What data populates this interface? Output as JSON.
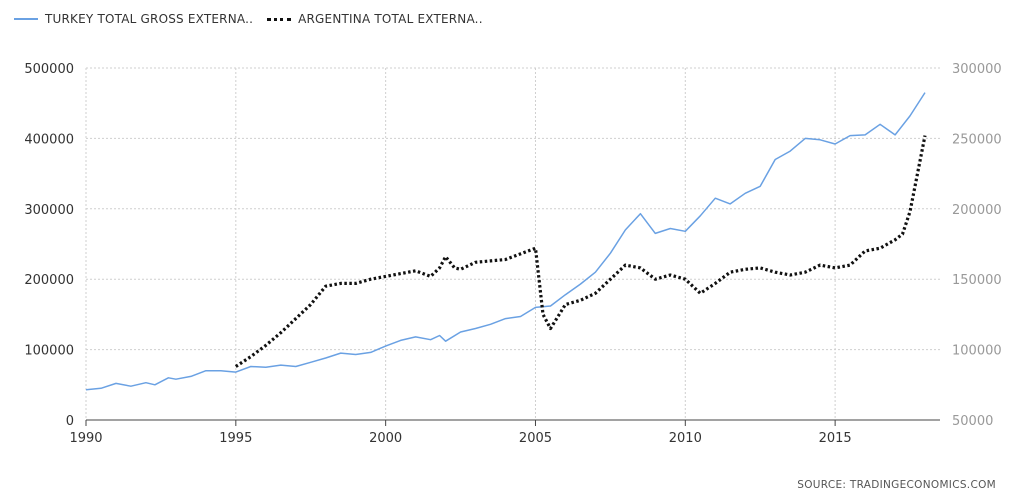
{
  "legend": {
    "series1": "TURKEY TOTAL GROSS EXTERNA..",
    "series2": "ARGENTINA TOTAL EXTERNA.."
  },
  "source": "SOURCE: TRADINGECONOMICS.COM",
  "colors": {
    "turkey": "#6aa1e3",
    "argentina": "#111111",
    "grid": "#cfcfcf"
  },
  "chart_data": {
    "type": "line",
    "title": "",
    "xlabel": "",
    "ylabel": "",
    "x_ticks": [
      "1990",
      "1995",
      "2000",
      "2005",
      "2010",
      "2015"
    ],
    "y_left_ticks": [
      "0",
      "100000",
      "200000",
      "300000",
      "400000",
      "500000"
    ],
    "y_right_ticks": [
      "50000",
      "100000",
      "150000",
      "200000",
      "250000",
      "300000"
    ],
    "xlim": [
      1990,
      2018.5
    ],
    "ylim_left": [
      0,
      500000
    ],
    "ylim_right": [
      50000,
      300000
    ],
    "grid": true,
    "legend_position": "top-left",
    "series": [
      {
        "name": "TURKEY TOTAL GROSS EXTERNA..",
        "axis": "left",
        "style": "solid",
        "x": [
          1990,
          1990.5,
          1991,
          1991.5,
          1992,
          1992.3,
          1992.75,
          1993,
          1993.5,
          1994,
          1994.5,
          1995,
          1995.5,
          1996,
          1996.5,
          1997,
          1997.5,
          1998,
          1998.5,
          1999,
          1999.5,
          2000,
          2000.5,
          2001,
          2001.5,
          2001.8,
          2002,
          2002.5,
          2003,
          2003.5,
          2004,
          2004.5,
          2005,
          2005.5,
          2006,
          2006.5,
          2007,
          2007.5,
          2008,
          2008.5,
          2009,
          2009.5,
          2010,
          2010.5,
          2011,
          2011.5,
          2012,
          2012.5,
          2013,
          2013.5,
          2014,
          2014.5,
          2015,
          2015.5,
          2016,
          2016.5,
          2017,
          2017.5,
          2018
        ],
        "values": [
          43000,
          45000,
          52000,
          48000,
          53000,
          50000,
          60000,
          58000,
          62000,
          70000,
          70000,
          68000,
          76000,
          75000,
          78000,
          76000,
          82000,
          88000,
          95000,
          93000,
          96000,
          105000,
          113000,
          118000,
          114000,
          120000,
          112000,
          125000,
          130000,
          136000,
          144000,
          147000,
          160000,
          162000,
          178000,
          193000,
          210000,
          237000,
          270000,
          293000,
          265000,
          272000,
          268000,
          290000,
          315000,
          307000,
          322000,
          332000,
          370000,
          382000,
          400000,
          398000,
          392000,
          404000,
          405000,
          420000,
          405000,
          432000,
          465000
        ]
      },
      {
        "name": "ARGENTINA TOTAL EXTERNA..",
        "axis": "right",
        "style": "dotted",
        "x": [
          1995,
          1995.5,
          1996,
          1996.5,
          1997,
          1997.5,
          1998,
          1998.5,
          1999,
          1999.5,
          2000,
          2000.5,
          2001,
          2001.5,
          2001.8,
          2002,
          2002.3,
          2002.5,
          2003,
          2003.5,
          2004,
          2004.5,
          2005,
          2005.25,
          2005.5,
          2006,
          2006.5,
          2007,
          2007.5,
          2008,
          2008.5,
          2009,
          2009.5,
          2010,
          2010.5,
          2011,
          2011.5,
          2012,
          2012.5,
          2013,
          2013.5,
          2014,
          2014.5,
          2015,
          2015.5,
          2016,
          2016.5,
          2017,
          2017.25,
          2017.5,
          2018
        ],
        "values": [
          88000,
          95000,
          103000,
          112000,
          122000,
          132000,
          145000,
          147000,
          147000,
          150000,
          152000,
          154000,
          156000,
          152000,
          158000,
          166000,
          158000,
          157000,
          162000,
          163000,
          164000,
          168000,
          172000,
          125000,
          115000,
          132000,
          135000,
          140000,
          150000,
          160000,
          158000,
          150000,
          153000,
          150000,
          140000,
          147000,
          155000,
          157000,
          158000,
          155000,
          153000,
          155000,
          160000,
          158000,
          160000,
          170000,
          172000,
          178000,
          182000,
          198000,
          252000
        ]
      }
    ]
  }
}
